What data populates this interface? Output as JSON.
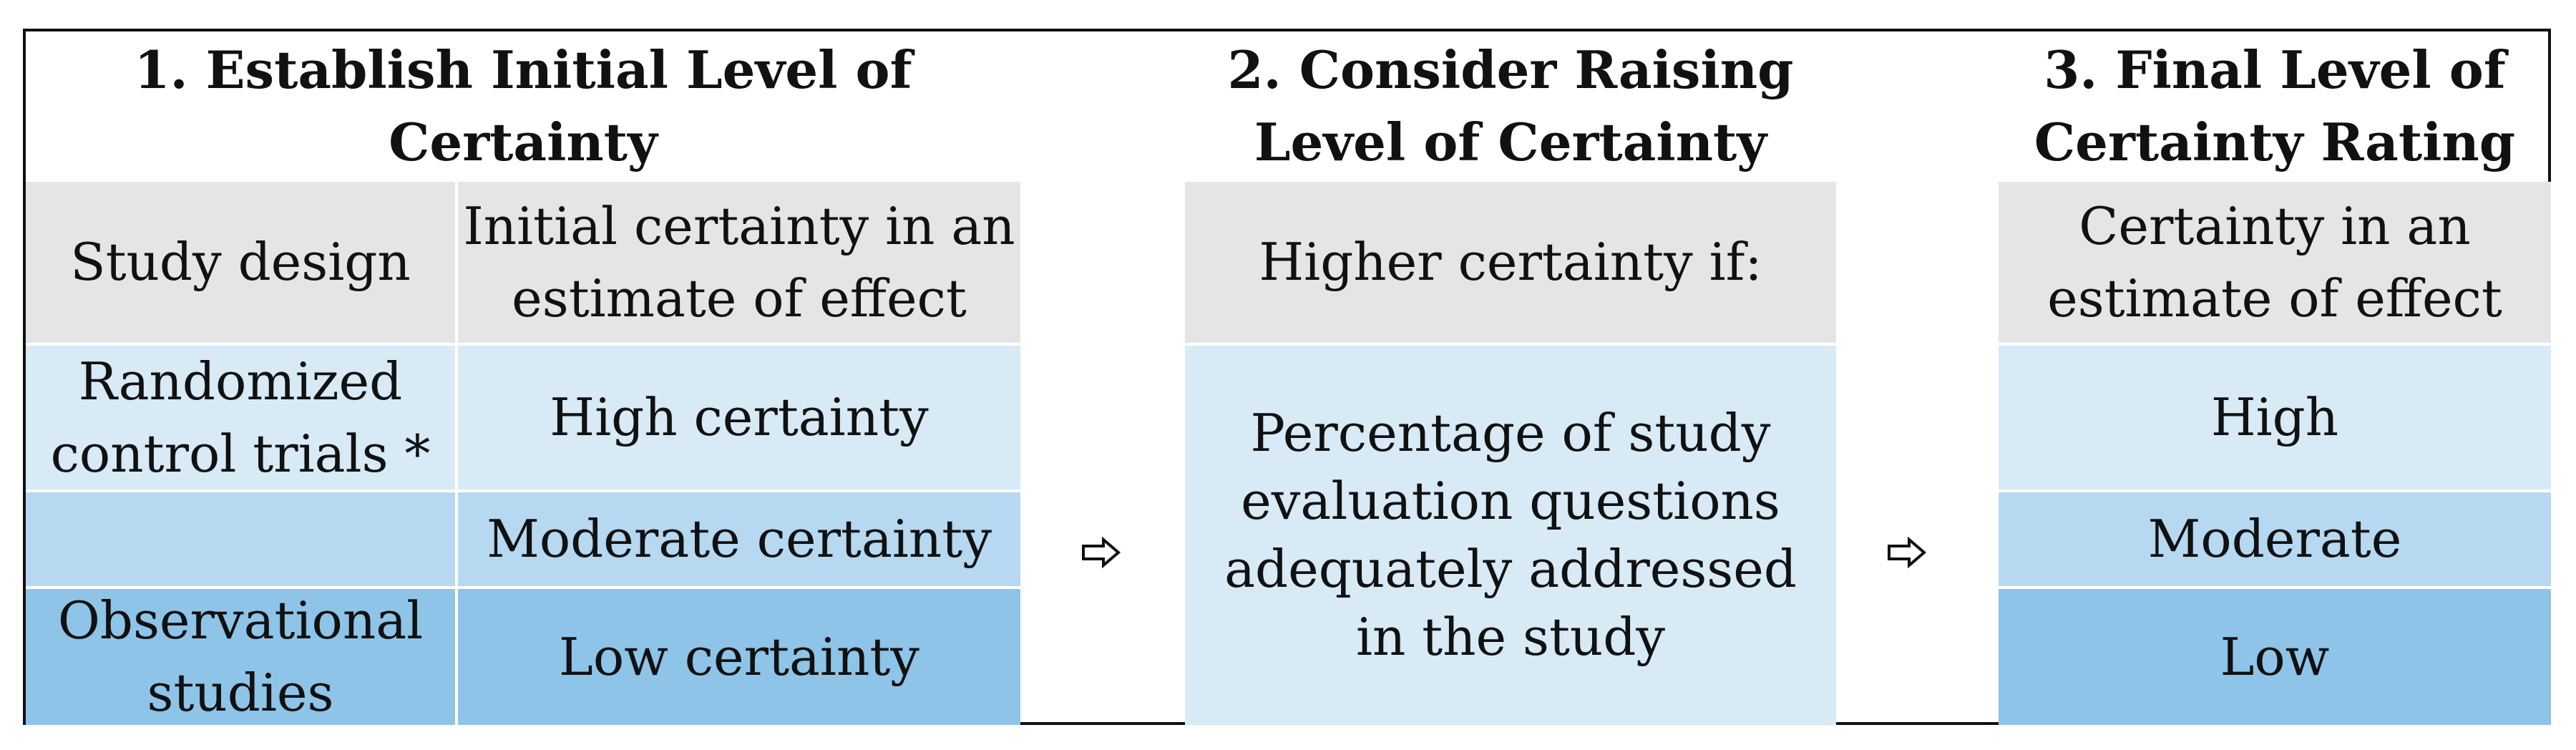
{
  "section1": {
    "title": "1. Establish Initial Level of Certainty",
    "col_study_design": "Study design",
    "col_initial_certainty": "Initial certainty in an\nestimate of effect",
    "rows": [
      {
        "design": "Randomized\ncontrol trials *",
        "certainty": "High certainty"
      },
      {
        "design": "",
        "certainty": "Moderate certainty"
      },
      {
        "design": "Observational\nstudies",
        "certainty": "Low certainty"
      }
    ]
  },
  "section2": {
    "title": "2. Consider Raising\nLevel of Certainty",
    "header": "Higher certainty if:",
    "body": "Percentage of study\nevaluation questions\nadequately addressed\nin the study"
  },
  "section3": {
    "title": "3. Final Level of\nCertainty Rating",
    "header": "Certainty in an\nestimate of effect",
    "rows": [
      "High",
      "Moderate",
      "Low"
    ]
  },
  "icons": {
    "arrow": "right-outline-arrow-icon"
  },
  "colors": {
    "gray": "#e5e5e5",
    "light_blue": "#d7eaf6",
    "mid_blue": "#b6d8f1",
    "dark_blue": "#8ec4e8"
  }
}
